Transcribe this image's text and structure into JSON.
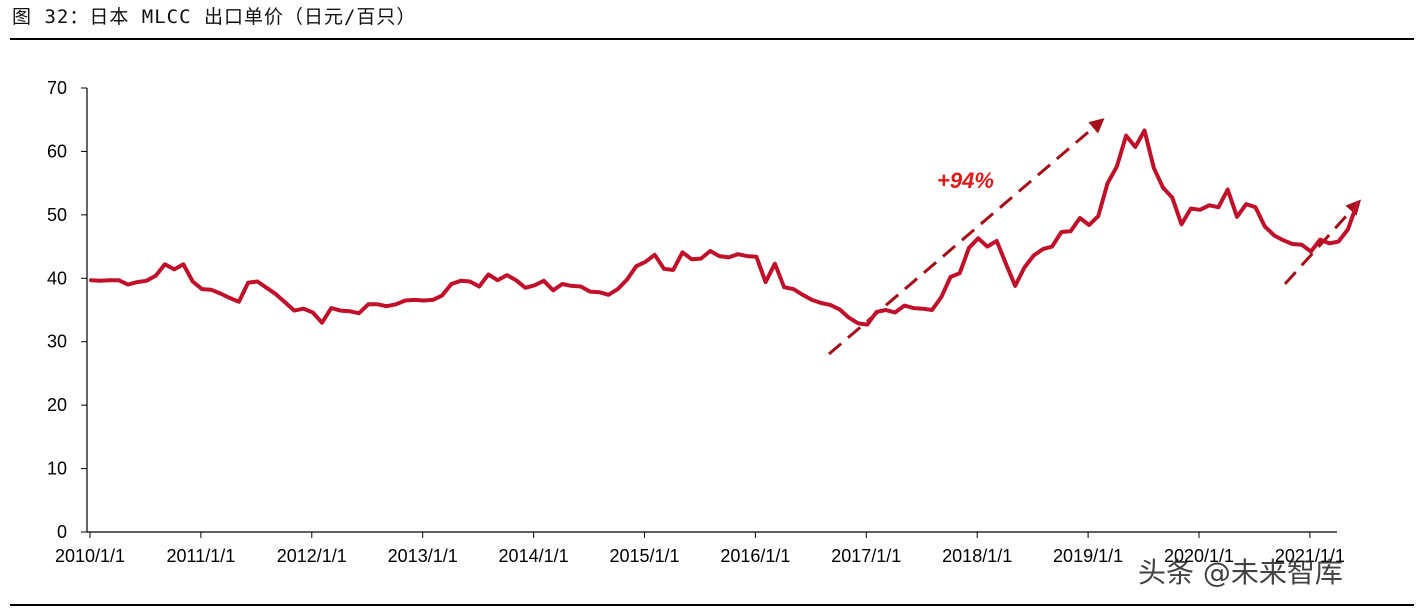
{
  "figure_title": "图 32：日本 MLCC 出口单价（日元/百只）",
  "watermark": "头条 @未来智库",
  "colors": {
    "line": "#c0102a",
    "arrow": "#a50f17",
    "annotation": "#e01818"
  },
  "chart_data": {
    "type": "line",
    "title": "",
    "xlabel": "",
    "ylabel": "",
    "ylim": [
      0,
      70
    ],
    "yticks": [
      0,
      10,
      20,
      30,
      40,
      50,
      60,
      70
    ],
    "xtick_labels": [
      "2010/1/1",
      "2011/1/1",
      "2012/1/1",
      "2013/1/1",
      "2014/1/1",
      "2015/1/1",
      "2016/1/1",
      "2017/1/1",
      "2018/1/1",
      "2019/1/1",
      "2020/1/1",
      "2021/1/1"
    ],
    "x_start": "2010-01",
    "series": [
      {
        "values": [
          39.7,
          39.6,
          39.7,
          39.7,
          39.0,
          39.4,
          39.6,
          40.4,
          42.2,
          41.4,
          42.2,
          39.5,
          38.3,
          38.2,
          37.6,
          36.9,
          36.3,
          39.3,
          39.5,
          38.5,
          37.5,
          36.2,
          34.9,
          35.2,
          34.6,
          33.0,
          35.3,
          34.9,
          34.8,
          34.5,
          35.9,
          35.9,
          35.6,
          35.9,
          36.5,
          36.6,
          36.5,
          36.6,
          37.3,
          39.1,
          39.6,
          39.5,
          38.7,
          40.6,
          39.7,
          40.5,
          39.7,
          38.5,
          38.9,
          39.6,
          38.1,
          39.1,
          38.8,
          38.7,
          37.9,
          37.8,
          37.4,
          38.3,
          39.8,
          41.9,
          42.6,
          43.7,
          41.5,
          41.3,
          44.1,
          43.0,
          43.1,
          44.3,
          43.5,
          43.3,
          43.8,
          43.5,
          43.4,
          39.4,
          42.3,
          38.6,
          38.3,
          37.4,
          36.6,
          36.1,
          35.8,
          35.1,
          33.8,
          32.9,
          32.7,
          34.7,
          35.0,
          34.6,
          35.7,
          35.3,
          35.2,
          35.0,
          37.0,
          40.2,
          40.8,
          44.8,
          46.3,
          45.0,
          45.9,
          42.3,
          38.8,
          41.7,
          43.6,
          44.6,
          45.0,
          47.3,
          47.4,
          49.5,
          48.4,
          49.8,
          55.0,
          57.6,
          62.5,
          60.7,
          63.3,
          57.4,
          54.3,
          52.7,
          48.5,
          51.0,
          50.8,
          51.5,
          51.2,
          54.0,
          49.7,
          51.7,
          51.2,
          48.2,
          46.8,
          46.0,
          45.4,
          45.3,
          44.2,
          46.1,
          45.5,
          45.8,
          47.7,
          51.8
        ]
      }
    ],
    "annotations": [
      {
        "text": "+94%"
      }
    ]
  }
}
